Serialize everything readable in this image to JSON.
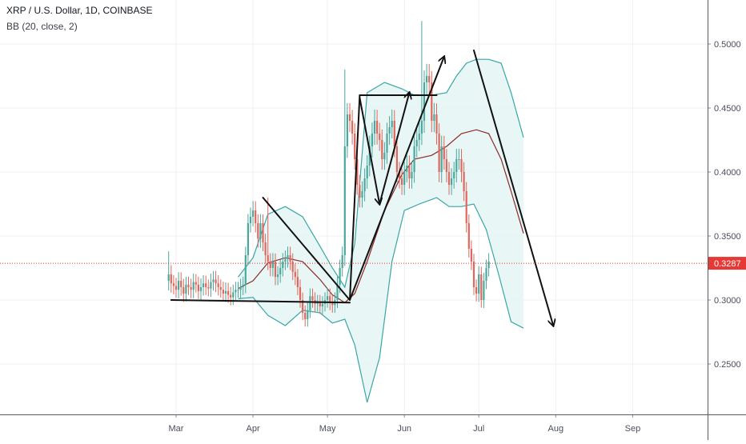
{
  "header": {
    "symbol": "XRP / U.S. Dollar, 1D, COINBASE",
    "indicator": "BB (20, close, 2)"
  },
  "colors": {
    "up": "#4aa89c",
    "down": "#e0675d",
    "band": "#3aa6a6",
    "band_fill": "#e5f4f4",
    "basis": "#8c2a2a",
    "last_price": "#e53935",
    "drawing": "#111111"
  },
  "chart_data": {
    "type": "candlestick",
    "title": "XRP / U.S. Dollar, 1D, COINBASE",
    "indicator": "BB (20, close, 2)",
    "x_ticks": [
      "Mar",
      "Apr",
      "May",
      "Jun",
      "Jul",
      "Aug",
      "Sep"
    ],
    "y_ticks": [
      "0.5000",
      "0.4500",
      "0.4000",
      "0.3500",
      "0.3000",
      "0.2500"
    ],
    "ylim": [
      0.205,
      0.533
    ],
    "last_price": "0.3287",
    "start_date": "2019-02-26",
    "closes": [
      0.32,
      0.313,
      0.311,
      0.308,
      0.315,
      0.31,
      0.305,
      0.312,
      0.31,
      0.308,
      0.314,
      0.312,
      0.307,
      0.31,
      0.313,
      0.31,
      0.309,
      0.314,
      0.316,
      0.313,
      0.31,
      0.308,
      0.305,
      0.307,
      0.304,
      0.302,
      0.306,
      0.308,
      0.308,
      0.31,
      0.312,
      0.335,
      0.36,
      0.365,
      0.37,
      0.36,
      0.348,
      0.36,
      0.345,
      0.335,
      0.33,
      0.325,
      0.33,
      0.318,
      0.32,
      0.325,
      0.33,
      0.332,
      0.335,
      0.33,
      0.322,
      0.318,
      0.31,
      0.3,
      0.29,
      0.285,
      0.292,
      0.303,
      0.3,
      0.297,
      0.298,
      0.295,
      0.297,
      0.3,
      0.303,
      0.298,
      0.296,
      0.3,
      0.312,
      0.325,
      0.335,
      0.42,
      0.445,
      0.44,
      0.43,
      0.41,
      0.39,
      0.38,
      0.385,
      0.395,
      0.405,
      0.42,
      0.43,
      0.44,
      0.43,
      0.425,
      0.41,
      0.415,
      0.43,
      0.435,
      0.44,
      0.42,
      0.4,
      0.395,
      0.39,
      0.4,
      0.405,
      0.395,
      0.4,
      0.42,
      0.425,
      0.43,
      0.44,
      0.47,
      0.475,
      0.47,
      0.44,
      0.445,
      0.43,
      0.4,
      0.42,
      0.41,
      0.4,
      0.39,
      0.395,
      0.4,
      0.41,
      0.41,
      0.4,
      0.385,
      0.36,
      0.34,
      0.33,
      0.31,
      0.305,
      0.32,
      0.3,
      0.315,
      0.325,
      0.33
    ],
    "candle_sizes": [
      0.0075,
      0.00726,
      0.00651,
      0.00637,
      0.00674,
      0.0066,
      0.00647,
      0.00615,
      0.0062,
      0.00659,
      0.00669,
      0.0062,
      0.00622,
      0.00682,
      0.00644,
      0.00605,
      0.00601,
      0.00657,
      0.00665,
      0.00682,
      0.00644,
      0.0061,
      0.00627,
      0.00672,
      0.00637,
      0.00617,
      0.00595,
      0.00621,
      0.00616,
      0.00659,
      0.00624,
      0.0067,
      0.0072,
      0.0073,
      0.0074,
      0.0072,
      0.00696,
      0.0072,
      0.0069,
      0.0067,
      0.0066,
      0.0065,
      0.0066,
      0.00636,
      0.0064,
      0.0065,
      0.0066,
      0.00664,
      0.0067,
      0.0066,
      0.00644,
      0.00636,
      0.0062,
      0.006,
      0.0058,
      0.0057,
      0.00584,
      0.00606,
      0.006,
      0.00594,
      0.00596,
      0.0059,
      0.00594,
      0.006,
      0.00606,
      0.00596,
      0.00592,
      0.006,
      0.00624,
      0.0065,
      0.0067,
      0.0084,
      0.0089,
      0.0088,
      0.0086,
      0.0082,
      0.0078,
      0.0076,
      0.0077,
      0.0079,
      0.0081,
      0.0084,
      0.0086,
      0.0088,
      0.0086,
      0.0085,
      0.0082,
      0.0083,
      0.0086,
      0.0087,
      0.0088,
      0.0084,
      0.008,
      0.0079,
      0.0078,
      0.008,
      0.0081,
      0.0079,
      0.008,
      0.0084,
      0.0085,
      0.0086,
      0.0088,
      0.0094,
      0.0095,
      0.0094,
      0.0088,
      0.0089,
      0.0086,
      0.008,
      0.0084,
      0.0082,
      0.008,
      0.0078,
      0.0079,
      0.008,
      0.0082,
      0.0082,
      0.008,
      0.0077,
      0.0072,
      0.0068,
      0.0066,
      0.0062,
      0.0061,
      0.0064,
      0.006,
      0.0063,
      0.0065,
      0.0066
    ],
    "spike_candles": [
      {
        "index": 0,
        "high": 0.338
      },
      {
        "index": 40,
        "high": 0.38
      },
      {
        "index": 71,
        "high": 0.48
      },
      {
        "index": 102,
        "high": 0.518
      }
    ],
    "bollinger": {
      "upper": [
        {
          "x": "2019-03-26",
          "y": 0.318
        },
        {
          "x": "2019-04-01",
          "y": 0.333
        },
        {
          "x": "2019-04-07",
          "y": 0.367
        },
        {
          "x": "2019-04-14",
          "y": 0.373
        },
        {
          "x": "2019-04-21",
          "y": 0.365
        },
        {
          "x": "2019-04-28",
          "y": 0.342
        },
        {
          "x": "2019-05-03",
          "y": 0.325
        },
        {
          "x": "2019-05-08",
          "y": 0.31
        },
        {
          "x": "2019-05-12",
          "y": 0.344
        },
        {
          "x": "2019-05-17",
          "y": 0.462
        },
        {
          "x": "2019-05-24",
          "y": 0.47
        },
        {
          "x": "2019-05-31",
          "y": 0.465
        },
        {
          "x": "2019-06-05",
          "y": 0.46
        },
        {
          "x": "2019-06-12",
          "y": 0.46
        },
        {
          "x": "2019-06-18",
          "y": 0.462
        },
        {
          "x": "2019-06-22",
          "y": 0.475
        },
        {
          "x": "2019-06-26",
          "y": 0.485
        },
        {
          "x": "2019-06-30",
          "y": 0.488
        },
        {
          "x": "2019-07-05",
          "y": 0.488
        },
        {
          "x": "2019-07-10",
          "y": 0.485
        },
        {
          "x": "2019-07-14",
          "y": 0.462
        },
        {
          "x": "2019-07-19",
          "y": 0.427
        }
      ],
      "lower": [
        {
          "x": "2019-03-26",
          "y": 0.301
        },
        {
          "x": "2019-04-01",
          "y": 0.302
        },
        {
          "x": "2019-04-07",
          "y": 0.288
        },
        {
          "x": "2019-04-14",
          "y": 0.28
        },
        {
          "x": "2019-04-21",
          "y": 0.292
        },
        {
          "x": "2019-04-28",
          "y": 0.29
        },
        {
          "x": "2019-05-03",
          "y": 0.282
        },
        {
          "x": "2019-05-08",
          "y": 0.285
        },
        {
          "x": "2019-05-12",
          "y": 0.265
        },
        {
          "x": "2019-05-17",
          "y": 0.22
        },
        {
          "x": "2019-05-22",
          "y": 0.255
        },
        {
          "x": "2019-05-27",
          "y": 0.33
        },
        {
          "x": "2019-06-01",
          "y": 0.37
        },
        {
          "x": "2019-06-07",
          "y": 0.375
        },
        {
          "x": "2019-06-14",
          "y": 0.38
        },
        {
          "x": "2019-06-19",
          "y": 0.373
        },
        {
          "x": "2019-06-24",
          "y": 0.373
        },
        {
          "x": "2019-06-29",
          "y": 0.375
        },
        {
          "x": "2019-07-04",
          "y": 0.355
        },
        {
          "x": "2019-07-09",
          "y": 0.32
        },
        {
          "x": "2019-07-14",
          "y": 0.283
        },
        {
          "x": "2019-07-19",
          "y": 0.278
        }
      ],
      "basis": [
        {
          "x": "2019-03-26",
          "y": 0.309
        },
        {
          "x": "2019-04-01",
          "y": 0.315
        },
        {
          "x": "2019-04-07",
          "y": 0.329
        },
        {
          "x": "2019-04-14",
          "y": 0.333
        },
        {
          "x": "2019-04-21",
          "y": 0.33
        },
        {
          "x": "2019-04-28",
          "y": 0.316
        },
        {
          "x": "2019-05-03",
          "y": 0.304
        },
        {
          "x": "2019-05-08",
          "y": 0.298
        },
        {
          "x": "2019-05-12",
          "y": 0.305
        },
        {
          "x": "2019-05-17",
          "y": 0.33
        },
        {
          "x": "2019-05-24",
          "y": 0.37
        },
        {
          "x": "2019-05-31",
          "y": 0.398
        },
        {
          "x": "2019-06-05",
          "y": 0.41
        },
        {
          "x": "2019-06-12",
          "y": 0.413
        },
        {
          "x": "2019-06-18",
          "y": 0.42
        },
        {
          "x": "2019-06-24",
          "y": 0.43
        },
        {
          "x": "2019-06-30",
          "y": 0.433
        },
        {
          "x": "2019-07-05",
          "y": 0.43
        },
        {
          "x": "2019-07-10",
          "y": 0.41
        },
        {
          "x": "2019-07-14",
          "y": 0.385
        },
        {
          "x": "2019-07-19",
          "y": 0.352
        }
      ]
    },
    "drawings": [
      {
        "type": "segment",
        "from": {
          "x": "2019-02-27",
          "y": 0.3
        },
        "to": {
          "x": "2019-05-10",
          "y": 0.298
        }
      },
      {
        "type": "segment",
        "from": {
          "x": "2019-04-05",
          "y": 0.38
        },
        "to": {
          "x": "2019-05-10",
          "y": 0.3
        }
      },
      {
        "type": "segment",
        "from": {
          "x": "2019-05-10",
          "y": 0.3
        },
        "to": {
          "x": "2019-05-14",
          "y": 0.46
        }
      },
      {
        "type": "segment",
        "from": {
          "x": "2019-05-14",
          "y": 0.46
        },
        "to": {
          "x": "2019-06-14",
          "y": 0.46
        }
      },
      {
        "type": "arrow",
        "from": {
          "x": "2019-05-14",
          "y": 0.458
        },
        "to": {
          "x": "2019-05-22",
          "y": 0.375
        }
      },
      {
        "type": "arrow",
        "from": {
          "x": "2019-05-22",
          "y": 0.375
        },
        "to": {
          "x": "2019-06-03",
          "y": 0.462
        }
      },
      {
        "type": "arrow",
        "from": {
          "x": "2019-05-10",
          "y": 0.3
        },
        "to": {
          "x": "2019-06-17",
          "y": 0.49
        }
      },
      {
        "type": "arrow",
        "from": {
          "x": "2019-06-29",
          "y": 0.495
        },
        "to": {
          "x": "2019-07-31",
          "y": 0.28
        }
      }
    ]
  }
}
